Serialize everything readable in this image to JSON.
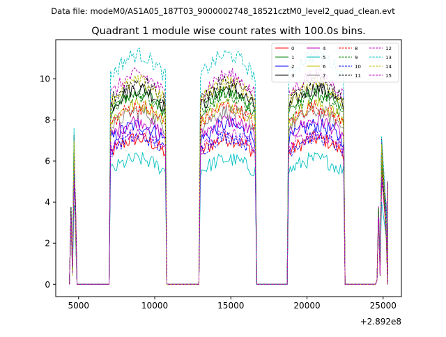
{
  "chart_data": {
    "type": "line",
    "suptitle": "Data file: modeM0/AS1A05_187T03_9000002748_18521cztM0_level2_quad_clean.evt",
    "title": "Quadrant 1 module wise count rates with 100.0s bins.",
    "xlabel": "",
    "ylabel": "",
    "x_offset_label": "+2.892e8",
    "xlim": [
      3500,
      26200
    ],
    "ylim": [
      -0.6,
      11.9
    ],
    "xticks": [
      5000,
      10000,
      15000,
      20000,
      25000
    ],
    "yticks": [
      0,
      2,
      4,
      6,
      8,
      10
    ],
    "legend_position": "top-right",
    "segments": [
      {
        "start": 4400,
        "end": 4900
      },
      {
        "start": 7100,
        "end": 10700
      },
      {
        "start": 13000,
        "end": 16600
      },
      {
        "start": 18800,
        "end": 22400
      },
      {
        "start": 24600,
        "end": 25300
      }
    ],
    "gap_value": 0,
    "series": [
      {
        "name": "0",
        "color": "#ff0000",
        "dash": "solid",
        "level": 6.4
      },
      {
        "name": "1",
        "color": "#008000",
        "dash": "solid",
        "level": 8.4
      },
      {
        "name": "2",
        "color": "#0000ff",
        "dash": "solid",
        "level": 7.0
      },
      {
        "name": "3",
        "color": "#000000",
        "dash": "solid",
        "level": 8.6
      },
      {
        "name": "4",
        "color": "#bf00bf",
        "dash": "solid",
        "level": 7.2
      },
      {
        "name": "5",
        "color": "#00bfbf",
        "dash": "solid",
        "level": 5.5
      },
      {
        "name": "6",
        "color": "#bfbf00",
        "dash": "solid",
        "level": 7.9
      },
      {
        "name": "7",
        "color": "#808080",
        "dash": "solid",
        "level": 7.6
      },
      {
        "name": "8",
        "color": "#ff0000",
        "dash": "dashed",
        "level": 7.8
      },
      {
        "name": "9",
        "color": "#008000",
        "dash": "dashed",
        "level": 8.3
      },
      {
        "name": "10",
        "color": "#0000ff",
        "dash": "dashed",
        "level": 6.5
      },
      {
        "name": "11",
        "color": "#000000",
        "dash": "dashed",
        "level": 8.9
      },
      {
        "name": "12",
        "color": "#bf00bf",
        "dash": "dashed",
        "level": 9.2
      },
      {
        "name": "13",
        "color": "#00bfbf",
        "dash": "dashed",
        "level": 10.1
      },
      {
        "name": "14",
        "color": "#bfbf00",
        "dash": "dashed",
        "level": 8.9
      },
      {
        "name": "15",
        "color": "#bf00bf",
        "dash": "dashed",
        "level": 6.6
      }
    ]
  }
}
